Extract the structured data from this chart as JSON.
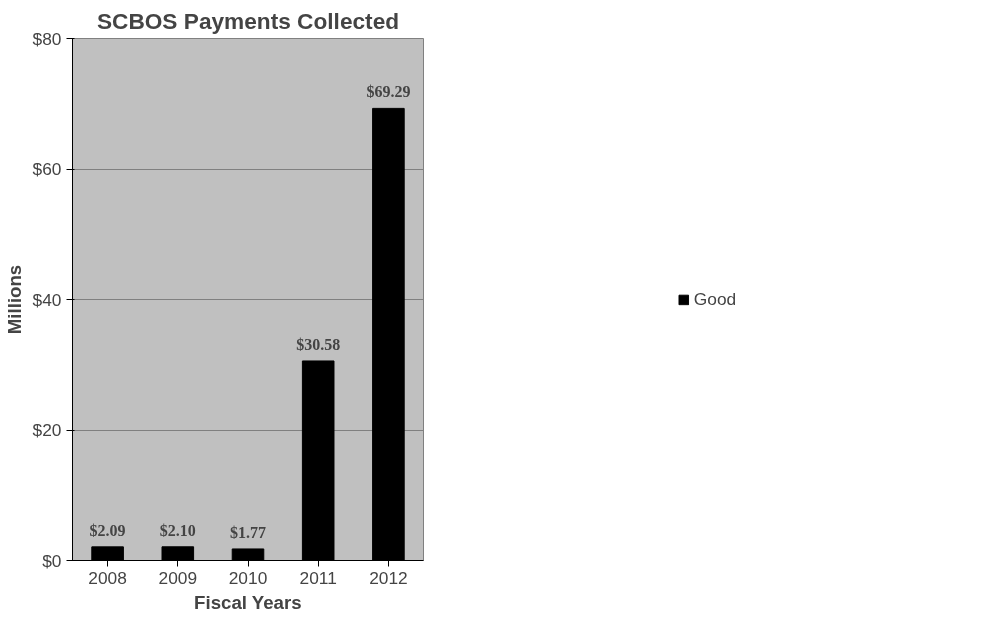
{
  "chart_data": {
    "type": "bar",
    "title": "SCBOS Payments Collected",
    "xlabel": "Fiscal Years",
    "ylabel": "Millions",
    "categories": [
      "2008",
      "2009",
      "2010",
      "2011",
      "2012"
    ],
    "series": [
      {
        "name": "Good",
        "color": "#000000",
        "values": [
          2.09,
          2.1,
          1.77,
          30.58,
          69.29
        ],
        "value_labels": [
          "$2.09",
          "$2.10",
          "$1.77",
          "$30.58",
          "$69.29"
        ]
      }
    ],
    "ylim": [
      0,
      80
    ],
    "yticks": [
      {
        "value": 0,
        "label": "$0"
      },
      {
        "value": 20,
        "label": "$20"
      },
      {
        "value": 40,
        "label": "$40"
      },
      {
        "value": 60,
        "label": "$60"
      },
      {
        "value": 80,
        "label": "$80"
      }
    ],
    "grid": "y",
    "legend": "right"
  }
}
